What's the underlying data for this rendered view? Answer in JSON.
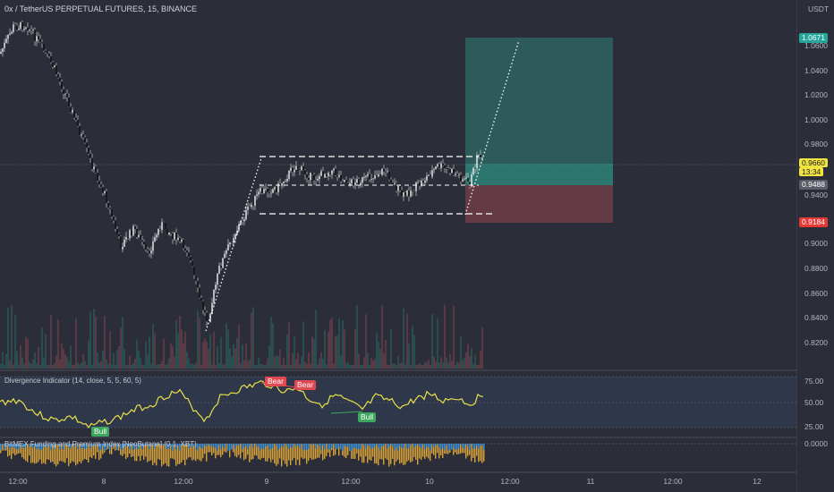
{
  "title": "0x / TetherUS PERPETUAL FUTURES, 15, BINANCE",
  "currency": "USDT",
  "price_axis": [
    "1.0600",
    "1.0400",
    "1.0200",
    "1.0000",
    "0.9800",
    "0.9400",
    "0.9000",
    "0.8800",
    "0.8600",
    "0.8400",
    "0.8200"
  ],
  "price_tags": {
    "target": "1.0671",
    "current": "0.9660",
    "countdown": "13:34",
    "entry": "0.9488",
    "stop": "0.9184"
  },
  "indicator1": {
    "label": "Divergence Indicator (14, close, 5, 5, 60, 5)",
    "ticks": [
      "75.00",
      "50.00",
      "25.00"
    ],
    "bear1": "Bear",
    "bear2": "Bear",
    "bull1": "Bull",
    "bull2": "Bull"
  },
  "indicator2": {
    "label": "BitMEX Funding and Premium Index [NeoButane] (0.1, XBT)",
    "tick": "0.0000"
  },
  "time_axis": [
    "12:00",
    "8",
    "12:00",
    "9",
    "12:00",
    "10",
    "12:00",
    "11",
    "12:00",
    "12"
  ],
  "colors": {
    "background": "#2b2e38",
    "target_zone": "#2e6b66",
    "stop_zone": "#6e3d47",
    "oscillator": "#e8e04a",
    "bear": "#e04852",
    "bull": "#3da85e"
  }
}
